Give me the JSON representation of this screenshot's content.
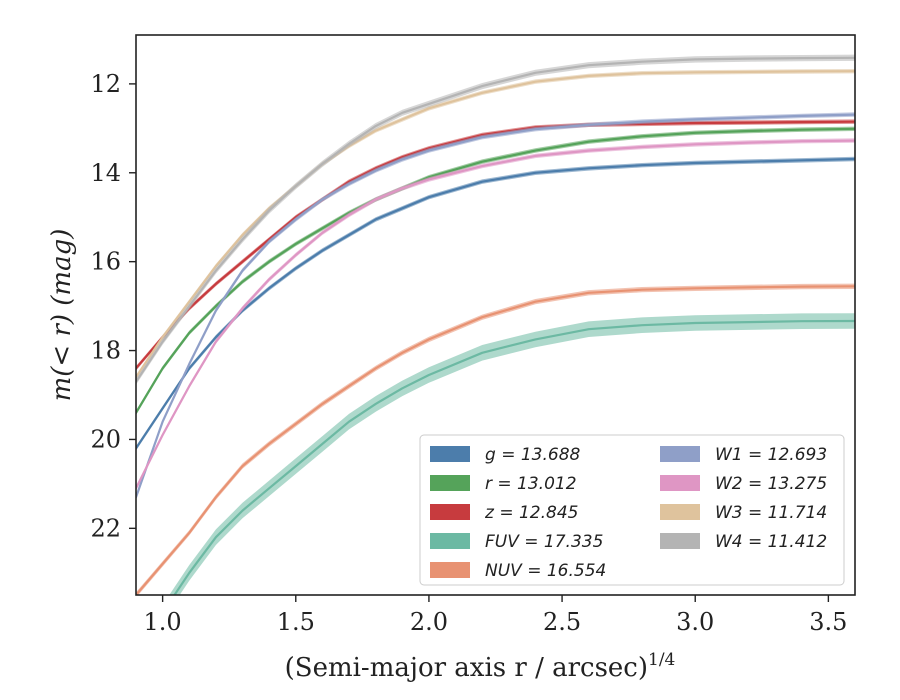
{
  "chart_data": {
    "type": "line",
    "xlabel": "(Semi-major axis r / arcsec)",
    "xlabel_sup": "1/4",
    "ylabel": "m(< r) (mag)",
    "xlim": [
      0.9,
      3.6
    ],
    "ylim": [
      23.5,
      10.9
    ],
    "y_inverted": true,
    "xticks": [
      1.0,
      1.5,
      2.0,
      2.5,
      3.0,
      3.5
    ],
    "xtick_labels": [
      "1.0",
      "1.5",
      "2.0",
      "2.5",
      "3.0",
      "3.5"
    ],
    "yticks": [
      12,
      14,
      16,
      18,
      20,
      22
    ],
    "ytick_labels": [
      "12",
      "14",
      "16",
      "18",
      "20",
      "22"
    ],
    "grid": false,
    "legend_position": "lower-right",
    "legend_columns": 2,
    "series": [
      {
        "name": "g = 13.688",
        "color": "#4c7dab",
        "band_width": 0.1,
        "x": [
          0.9,
          1.0,
          1.1,
          1.2,
          1.3,
          1.4,
          1.5,
          1.6,
          1.7,
          1.8,
          1.9,
          2.0,
          2.2,
          2.4,
          2.6,
          2.8,
          3.0,
          3.2,
          3.4,
          3.6
        ],
        "y": [
          20.2,
          19.3,
          18.4,
          17.7,
          17.1,
          16.6,
          16.15,
          15.75,
          15.4,
          15.05,
          14.8,
          14.55,
          14.2,
          14.0,
          13.9,
          13.83,
          13.78,
          13.75,
          13.72,
          13.69
        ]
      },
      {
        "name": "r = 13.012",
        "color": "#55a35a",
        "band_width": 0.1,
        "x": [
          0.9,
          1.0,
          1.1,
          1.2,
          1.3,
          1.4,
          1.5,
          1.6,
          1.7,
          1.8,
          1.9,
          2.0,
          2.2,
          2.4,
          2.6,
          2.8,
          3.0,
          3.2,
          3.4,
          3.6
        ],
        "y": [
          19.4,
          18.4,
          17.6,
          17.0,
          16.45,
          16.0,
          15.6,
          15.25,
          14.9,
          14.6,
          14.35,
          14.1,
          13.75,
          13.5,
          13.3,
          13.18,
          13.1,
          13.06,
          13.03,
          13.01
        ]
      },
      {
        "name": "z = 12.845",
        "color": "#c73b3e",
        "band_width": 0.1,
        "x": [
          0.9,
          1.0,
          1.1,
          1.2,
          1.3,
          1.4,
          1.5,
          1.6,
          1.7,
          1.8,
          1.9,
          2.0,
          2.2,
          2.4,
          2.6,
          2.8,
          3.0,
          3.2,
          3.4,
          3.6
        ],
        "y": [
          18.4,
          17.7,
          17.05,
          16.5,
          16.0,
          15.5,
          15.0,
          14.6,
          14.2,
          13.9,
          13.65,
          13.45,
          13.15,
          12.98,
          12.92,
          12.9,
          12.88,
          12.87,
          12.86,
          12.85
        ]
      },
      {
        "name": "FUV = 17.335",
        "color": "#6cb9a3",
        "band_width": 0.35,
        "x": [
          0.9,
          1.0,
          1.1,
          1.2,
          1.3,
          1.4,
          1.5,
          1.6,
          1.7,
          1.8,
          1.9,
          2.0,
          2.2,
          2.4,
          2.6,
          2.8,
          3.0,
          3.2,
          3.4,
          3.6
        ],
        "y": [
          24.2,
          23.9,
          23.0,
          22.2,
          21.6,
          21.1,
          20.6,
          20.1,
          19.6,
          19.2,
          18.85,
          18.55,
          18.05,
          17.75,
          17.52,
          17.43,
          17.38,
          17.36,
          17.34,
          17.335
        ]
      },
      {
        "name": "NUV = 16.554",
        "color": "#e89272",
        "band_width": 0.12,
        "x": [
          0.9,
          1.0,
          1.1,
          1.2,
          1.3,
          1.4,
          1.5,
          1.6,
          1.7,
          1.8,
          1.9,
          2.0,
          2.2,
          2.4,
          2.6,
          2.8,
          3.0,
          3.2,
          3.4,
          3.6
        ],
        "y": [
          23.5,
          22.8,
          22.1,
          21.3,
          20.6,
          20.1,
          19.65,
          19.2,
          18.8,
          18.4,
          18.05,
          17.75,
          17.25,
          16.9,
          16.7,
          16.63,
          16.6,
          16.58,
          16.56,
          16.554
        ]
      },
      {
        "name": "W1 = 12.693",
        "color": "#8f9fc8",
        "band_width": 0.1,
        "x": [
          0.9,
          1.0,
          1.1,
          1.2,
          1.3,
          1.4,
          1.5,
          1.6,
          1.7,
          1.8,
          1.9,
          2.0,
          2.2,
          2.4,
          2.6,
          2.8,
          3.0,
          3.2,
          3.4,
          3.6
        ],
        "y": [
          21.3,
          19.6,
          18.3,
          17.1,
          16.2,
          15.55,
          15.05,
          14.6,
          14.25,
          13.95,
          13.7,
          13.5,
          13.2,
          13.02,
          12.92,
          12.85,
          12.8,
          12.76,
          12.72,
          12.69
        ]
      },
      {
        "name": "W2 = 13.275",
        "color": "#df96c4",
        "band_width": 0.1,
        "x": [
          0.9,
          1.0,
          1.1,
          1.2,
          1.3,
          1.4,
          1.5,
          1.6,
          1.7,
          1.8,
          1.9,
          2.0,
          2.2,
          2.4,
          2.6,
          2.8,
          3.0,
          3.2,
          3.4,
          3.6
        ],
        "y": [
          21.1,
          19.9,
          18.8,
          17.8,
          17.05,
          16.4,
          15.85,
          15.35,
          14.95,
          14.6,
          14.35,
          14.15,
          13.85,
          13.62,
          13.5,
          13.42,
          13.36,
          13.32,
          13.29,
          13.275
        ]
      },
      {
        "name": "W3 = 11.714",
        "color": "#dfc39d",
        "band_width": 0.1,
        "x": [
          0.9,
          1.0,
          1.1,
          1.2,
          1.3,
          1.4,
          1.5,
          1.6,
          1.7,
          1.8,
          1.9,
          2.0,
          2.2,
          2.4,
          2.6,
          2.8,
          3.0,
          3.2,
          3.4,
          3.6
        ],
        "y": [
          18.6,
          17.7,
          16.9,
          16.1,
          15.4,
          14.8,
          14.3,
          13.8,
          13.4,
          13.05,
          12.8,
          12.55,
          12.2,
          11.95,
          11.82,
          11.76,
          11.74,
          11.73,
          11.72,
          11.714
        ]
      },
      {
        "name": "W4 = 11.412",
        "color": "#b4b4b4",
        "band_width": 0.14,
        "x": [
          0.9,
          1.0,
          1.1,
          1.2,
          1.3,
          1.4,
          1.5,
          1.6,
          1.7,
          1.8,
          1.9,
          2.0,
          2.2,
          2.4,
          2.6,
          2.8,
          3.0,
          3.2,
          3.4,
          3.6
        ],
        "y": [
          18.7,
          17.8,
          17.0,
          16.2,
          15.5,
          14.85,
          14.3,
          13.8,
          13.35,
          12.95,
          12.65,
          12.45,
          12.05,
          11.75,
          11.58,
          11.5,
          11.45,
          11.43,
          11.42,
          11.412
        ]
      }
    ]
  }
}
